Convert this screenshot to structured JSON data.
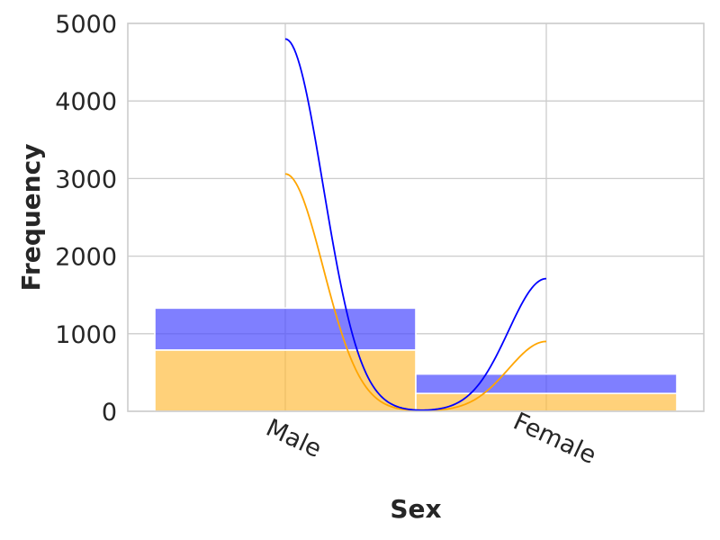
{
  "chart_data": {
    "type": "bar",
    "stacked": true,
    "categories": [
      "Male",
      "Female"
    ],
    "xlabel": "Sex",
    "ylabel": "Frequency",
    "ylim": [
      0,
      5000
    ],
    "yticks": [
      0,
      1000,
      2000,
      3000,
      4000,
      5000
    ],
    "grid": true,
    "series": [
      {
        "values": [
          790,
          230
        ],
        "color": "#ffb833",
        "kde_color": "#ffa500",
        "kde_peaks": [
          3060,
          900
        ]
      },
      {
        "values": [
          540,
          250
        ],
        "color": "#4d4dff",
        "kde_color": "#0000ff",
        "kde_peaks": [
          4800,
          1710
        ]
      }
    ]
  }
}
